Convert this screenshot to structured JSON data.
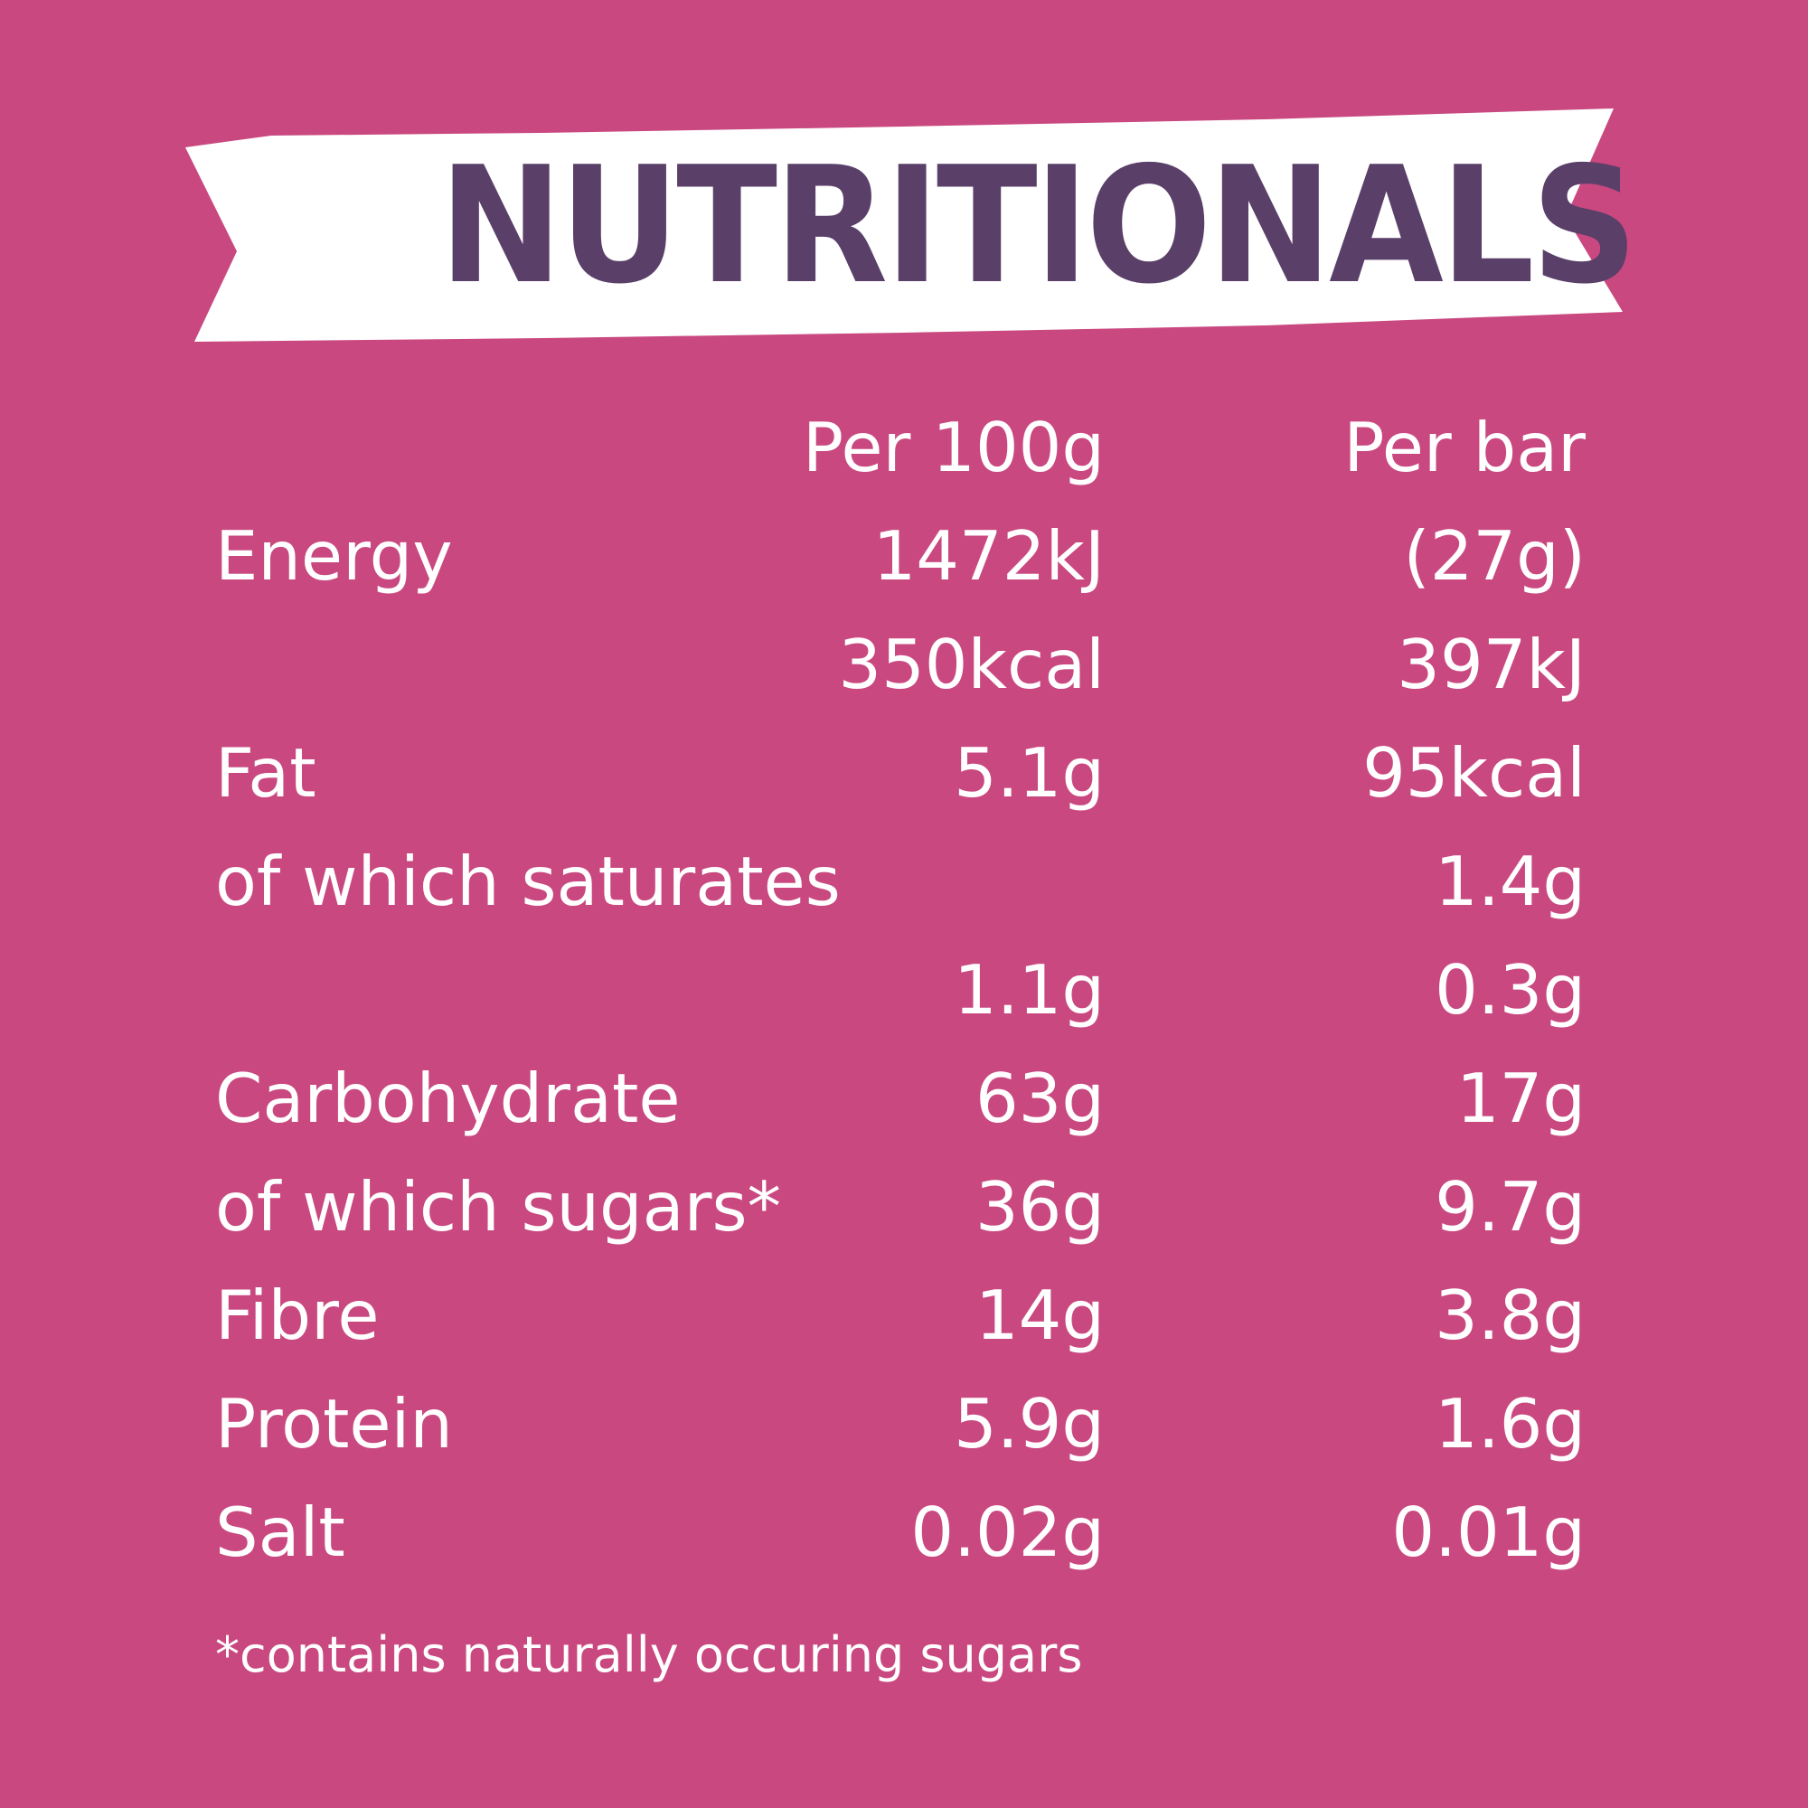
{
  "title": "NUTRITIONALS",
  "colors": {
    "background": "#c94880",
    "banner": "#ffffff",
    "title": "#5a3f68",
    "text": "#ffffff"
  },
  "table": {
    "header_per100": "Per 100g",
    "header_perbar_1": "Per bar",
    "header_perbar_2": "(27g)",
    "rows": {
      "energy": {
        "label": "Energy",
        "per100_kj": "1472kJ",
        "per100_kcal": "350kcal",
        "perbar_kj": "397kJ",
        "perbar_kcal": "95kcal"
      },
      "fat": {
        "label": "Fat",
        "per100": "5.1g",
        "perbar": "1.4g"
      },
      "saturates": {
        "label": "of which saturates",
        "per100": "1.1g",
        "perbar": "0.3g"
      },
      "carbohydrate": {
        "label": "Carbohydrate",
        "per100": "63g",
        "perbar": "17g"
      },
      "sugars": {
        "label": "of which sugars*",
        "per100": "36g",
        "perbar": "9.7g"
      },
      "fibre": {
        "label": "Fibre",
        "per100": "14g",
        "perbar": "3.8g"
      },
      "protein": {
        "label": "Protein",
        "per100": "5.9g",
        "perbar": "1.6g"
      },
      "salt": {
        "label": "Salt",
        "per100": "0.02g",
        "perbar": "0.01g"
      }
    }
  },
  "footnote": "*contains naturally occuring sugars"
}
